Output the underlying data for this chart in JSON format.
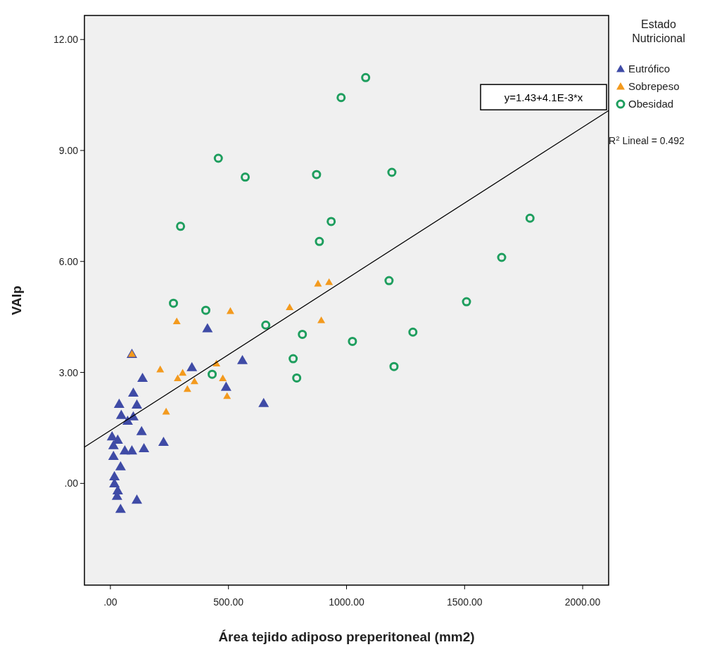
{
  "chart_data": {
    "type": "scatter",
    "xlabel": "Área tejido adiposo preperitoneal (mm2)",
    "ylabel": "VAIp",
    "legend_title": "Estado Nutricional",
    "legend": "right",
    "grid": false,
    "xlim": [
      -110,
      2110
    ],
    "xticks": [
      {
        "value": 0,
        "label": ".00"
      },
      {
        "value": 500,
        "label": "500.00"
      },
      {
        "value": 1000,
        "label": "1000.00"
      },
      {
        "value": 1500,
        "label": "1500.00"
      },
      {
        "value": 2000,
        "label": "2000.00"
      }
    ],
    "ylim": [
      -2.75,
      12.65
    ],
    "yticks": [
      {
        "value": 0,
        "label": ".00"
      },
      {
        "value": 3,
        "label": "3.00"
      },
      {
        "value": 6,
        "label": "6.00"
      },
      {
        "value": 9,
        "label": "9.00"
      },
      {
        "value": 12,
        "label": "12.00"
      }
    ],
    "series": [
      {
        "name": "Eutrófico",
        "color": "#3f4ba6",
        "marker": "triangle",
        "x": [
          411,
          91,
          136,
          345,
          559,
          97,
          37,
          112,
          46,
          97,
          73,
          490,
          649,
          132,
          225,
          7,
          31,
          142,
          61,
          91,
          13,
          13,
          43,
          17,
          17,
          31,
          28,
          112,
          43
        ],
        "values": [
          4.19,
          3.5,
          2.85,
          3.14,
          3.33,
          2.45,
          2.15,
          2.13,
          1.85,
          1.81,
          1.69,
          2.61,
          2.17,
          1.41,
          1.12,
          1.27,
          1.18,
          0.95,
          0.89,
          0.89,
          1.03,
          0.74,
          0.46,
          0.19,
          0,
          -0.19,
          -0.34,
          -0.44,
          -0.69
        ]
      },
      {
        "name": "Sobrepeso",
        "color": "#f39a1e",
        "marker": "triangle",
        "x": [
          281,
          508,
          759,
          893,
          211,
          449,
          306,
          285,
          356,
          326,
          476,
          494,
          236,
          91,
          879,
          926
        ],
        "values": [
          4.38,
          4.66,
          4.76,
          4.41,
          3.08,
          3.24,
          2.99,
          2.84,
          2.76,
          2.55,
          2.84,
          2.36,
          1.94,
          3.5,
          5.4,
          5.44
        ]
      },
      {
        "name": "Obesidad",
        "color": "#1e9e5e",
        "marker": "circle",
        "x": [
          1081,
          977,
          457,
          571,
          873,
          1192,
          297,
          935,
          885,
          1180,
          1508,
          267,
          404,
          1777,
          1657,
          813,
          1025,
          1281,
          774,
          789,
          1201,
          658,
          431
        ],
        "values": [
          10.97,
          10.43,
          8.79,
          8.28,
          8.35,
          8.41,
          6.95,
          7.08,
          6.54,
          5.48,
          4.91,
          4.87,
          4.68,
          7.17,
          6.11,
          4.03,
          3.84,
          4.09,
          3.37,
          2.85,
          3.16,
          4.28,
          2.95
        ]
      },
      {
        "type": "line",
        "color": "#000000",
        "marker": "none",
        "x": [
          -110,
          2110
        ],
        "values": [
          0.98,
          10.08
        ]
      }
    ],
    "annotations": [
      {
        "text": "y=1.43+4.1E-3*x",
        "x": 2110,
        "y": 10.08
      },
      "R$^{2}$ Lineal = 0.492"
    ]
  }
}
